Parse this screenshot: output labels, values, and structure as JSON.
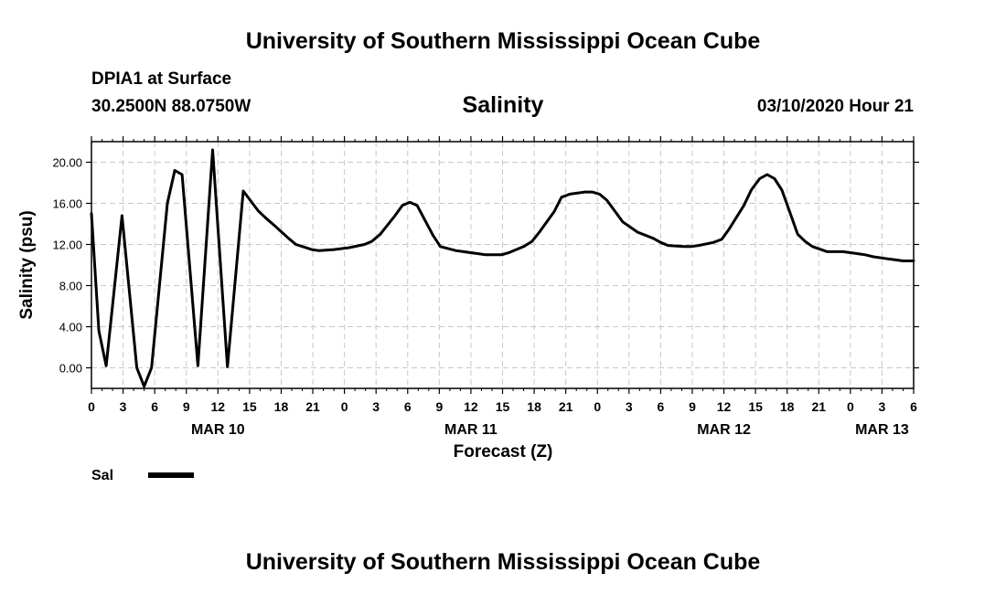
{
  "header": {
    "title_top": "University of Southern Mississippi Ocean Cube",
    "title_bottom": "University of Southern Mississippi Ocean Cube",
    "station": "DPIA1 at Surface",
    "coords": "30.2500N 88.0750W",
    "datetime": "03/10/2020 Hour 21"
  },
  "chart_data": {
    "type": "line",
    "title": "Salinity",
    "xlabel": "Forecast (Z)",
    "ylabel": "Salinity (psu)",
    "xunit": "forecast hour from MAR 10 00Z",
    "xlim": [
      0,
      78
    ],
    "ylim": [
      -2,
      22
    ],
    "grid": true,
    "ytick_values": [
      0,
      4,
      8,
      12,
      16,
      20
    ],
    "ytick_labels": [
      "0.00",
      "4.00",
      "8.00",
      "12.00",
      "16.00",
      "20.00"
    ],
    "xtick_values": [
      0,
      3,
      6,
      9,
      12,
      15,
      18,
      21,
      24,
      27,
      30,
      33,
      36,
      39,
      42,
      45,
      48,
      51,
      54,
      57,
      60,
      63,
      66,
      69,
      72,
      75,
      78
    ],
    "xtick_labels": [
      "0",
      "3",
      "6",
      "9",
      "12",
      "15",
      "18",
      "21",
      "0",
      "3",
      "6",
      "9",
      "12",
      "15",
      "18",
      "21",
      "0",
      "3",
      "6",
      "9",
      "12",
      "15",
      "18",
      "21",
      "0",
      "3",
      "6"
    ],
    "date_labels": [
      {
        "label": "MAR 10",
        "x": 12
      },
      {
        "label": "MAR 11",
        "x": 36
      },
      {
        "label": "MAR 12",
        "x": 60
      },
      {
        "label": "MAR 13",
        "x": 75
      }
    ],
    "legend": {
      "label": "Sal",
      "position": "bottom-left"
    },
    "series": [
      {
        "name": "Sal",
        "x": [
          0,
          0.7,
          1.4,
          2.9,
          4.3,
          5.0,
          5.7,
          7.2,
          7.9,
          8.6,
          10.1,
          11.5,
          12.9,
          14.4,
          15.8,
          16.5,
          17.3,
          18.7,
          19.4,
          20.9,
          21.6,
          23.0,
          24.5,
          25.9,
          26.6,
          27.4,
          28.8,
          29.5,
          30.2,
          30.9,
          32.4,
          33.1,
          34.6,
          35.3,
          36.7,
          37.4,
          38.9,
          39.6,
          41.0,
          41.8,
          42.5,
          43.9,
          44.6,
          45.4,
          46.8,
          47.5,
          48.2,
          48.9,
          50.4,
          51.1,
          51.8,
          53.3,
          54.0,
          54.7,
          56.2,
          56.9,
          57.6,
          59.0,
          59.8,
          60.5,
          61.9,
          62.6,
          63.4,
          64.1,
          64.8,
          65.5,
          66.2,
          67.0,
          67.7,
          68.4,
          69.8,
          70.6,
          71.3,
          72.7,
          73.4,
          74.2,
          75.6,
          76.3,
          77.0,
          78.0
        ],
        "values": [
          15.0,
          3.6,
          0.2,
          14.8,
          0.0,
          -1.8,
          0.0,
          16.0,
          19.2,
          18.8,
          0.2,
          21.2,
          0.1,
          17.2,
          15.3,
          14.6,
          13.9,
          12.6,
          12.0,
          11.5,
          11.4,
          11.5,
          11.7,
          12.0,
          12.3,
          13.0,
          14.8,
          15.8,
          16.1,
          15.8,
          12.9,
          11.8,
          11.4,
          11.3,
          11.1,
          11.0,
          11.0,
          11.2,
          11.8,
          12.3,
          13.2,
          15.2,
          16.6,
          16.9,
          17.1,
          17.1,
          16.9,
          16.3,
          14.2,
          13.7,
          13.2,
          12.6,
          12.2,
          11.9,
          11.8,
          11.8,
          11.9,
          12.2,
          12.5,
          13.5,
          15.8,
          17.3,
          18.4,
          18.8,
          18.4,
          17.3,
          15.3,
          13.0,
          12.3,
          11.8,
          11.3,
          11.3,
          11.3,
          11.1,
          11.0,
          10.8,
          10.6,
          10.5,
          10.4,
          10.4
        ]
      }
    ]
  }
}
